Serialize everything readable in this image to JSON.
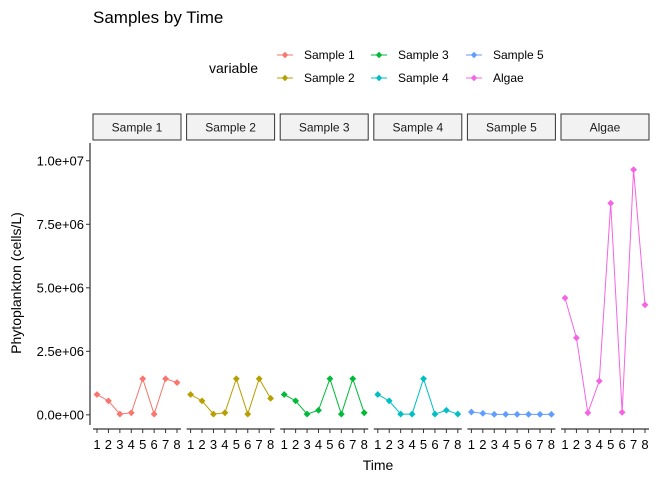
{
  "colors": {
    "Sample 1": "#F8766D",
    "Sample 2": "#B79F00",
    "Sample 3": "#00BA38",
    "Sample 4": "#00BFC4",
    "Sample 5": "#619CFF",
    "Algae": "#F564E3"
  },
  "chart_data": {
    "type": "line",
    "title": "Samples by Time",
    "xlabel": "Time",
    "ylabel": "Phytoplankton (cells/L)",
    "legend_title": "variable",
    "legend_position": "top",
    "grid": false,
    "facets": [
      "Sample 1",
      "Sample 2",
      "Sample 3",
      "Sample 4",
      "Sample 5",
      "Algae"
    ],
    "x": [
      1,
      2,
      3,
      4,
      5,
      6,
      7,
      8
    ],
    "x_tick_labels": [
      "1",
      "2",
      "3",
      "4",
      "5",
      "6",
      "7",
      "8"
    ],
    "ylim": [
      -400000,
      10700000
    ],
    "y_ticks": [
      0,
      2500000,
      5000000,
      7500000,
      10000000
    ],
    "y_tick_labels": [
      "0.0e+00",
      "2.5e+06",
      "5.0e+06",
      "7.5e+06",
      "1.0e+07"
    ],
    "series": [
      {
        "name": "Sample 1",
        "values": [
          800000,
          550000,
          30000,
          80000,
          1420000,
          30000,
          1420000,
          1270000
        ]
      },
      {
        "name": "Sample 2",
        "values": [
          800000,
          550000,
          30000,
          80000,
          1420000,
          30000,
          1420000,
          650000
        ]
      },
      {
        "name": "Sample 3",
        "values": [
          800000,
          550000,
          30000,
          180000,
          1420000,
          30000,
          1420000,
          80000
        ]
      },
      {
        "name": "Sample 4",
        "values": [
          800000,
          550000,
          30000,
          30000,
          1420000,
          30000,
          180000,
          30000
        ]
      },
      {
        "name": "Sample 5",
        "values": [
          110000,
          60000,
          20000,
          20000,
          20000,
          20000,
          20000,
          20000
        ]
      },
      {
        "name": "Algae",
        "values": [
          4600000,
          3030000,
          80000,
          1330000,
          8330000,
          100000,
          9650000,
          4330000
        ]
      }
    ]
  }
}
